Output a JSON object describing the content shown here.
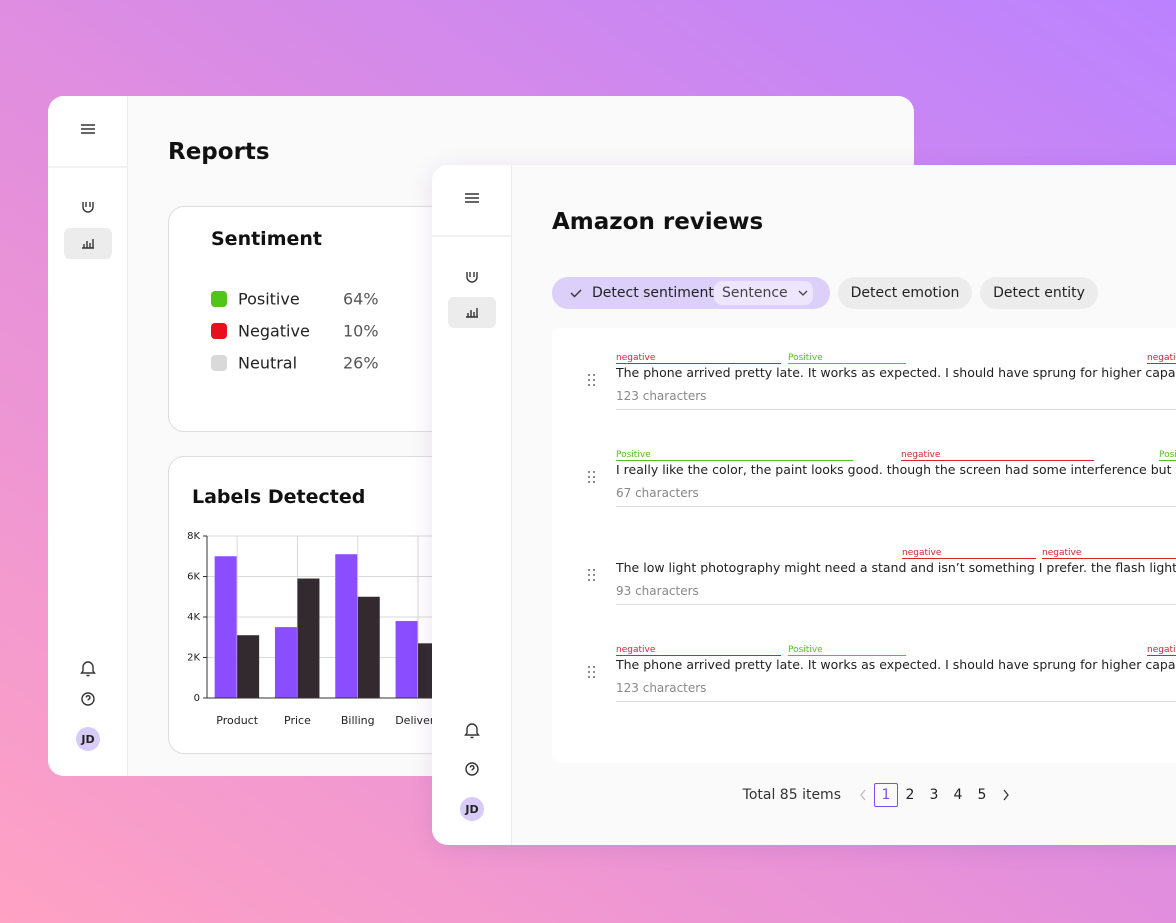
{
  "reports_window": {
    "title": "Reports",
    "avatar": "JD"
  },
  "chart_data": [
    {
      "type": "pie",
      "title": "Sentiment",
      "categories": [
        "Positive",
        "Negative",
        "Neutral"
      ],
      "values": [
        64,
        10,
        26
      ],
      "value_labels": [
        "64%",
        "10%",
        "26%"
      ],
      "colors": [
        "#52c41a",
        "#e8101a",
        "#d9d9d9"
      ],
      "donut": true
    },
    {
      "type": "bar",
      "title": "Labels Detected",
      "categories": [
        "Product",
        "Price",
        "Billing",
        "Delivery"
      ],
      "series": [
        {
          "color": "#8a4dff",
          "values": [
            7000,
            3500,
            7100,
            3800
          ]
        },
        {
          "color": "#322a2f",
          "values": [
            3100,
            5900,
            5000,
            2700
          ]
        }
      ],
      "ylim": [
        0,
        8000
      ],
      "yticks": [
        0,
        {
          "value": 2000,
          "label": "2K"
        },
        {
          "value": 4000,
          "label": "4K"
        },
        {
          "value": 6000,
          "label": "6K"
        },
        {
          "value": 8000,
          "label": "8K"
        }
      ],
      "grid": true
    }
  ],
  "reviews_window": {
    "title": "Amazon reviews",
    "avatar": "JD",
    "toolbar": {
      "detect_sentiment": "Detect sentiment",
      "granularity": "Sentence",
      "detect_emotion": "Detect emotion",
      "detect_entity": "Detect entity"
    },
    "reviews": [
      {
        "text": "The phone arrived pretty late. It works as expected. I should have sprung for higher capacity. I think",
        "characters": "123 characters",
        "tags": [
          {
            "label": "negative",
            "color": "#d9232e"
          },
          {
            "label": "Positive",
            "color": "#52c41a"
          },
          {
            "label": "negative",
            "color": "#d9232e"
          }
        ]
      },
      {
        "text": "I really like the color, the paint looks good. though the screen had some interference but overall the",
        "characters": "67 characters",
        "tags": [
          {
            "label": "Positive",
            "color": "#52c41a"
          },
          {
            "label": "negative",
            "color": "#d9232e"
          },
          {
            "label": "Positive",
            "color": "#52c41a"
          }
        ]
      },
      {
        "text": "The low light photography might need a stand and isn’t something I prefer. the flash light is the worst",
        "characters": "93 characters",
        "tags": [
          {
            "label": "negative",
            "color": "#d9232e"
          },
          {
            "label": "negative",
            "color": "#d9232e"
          }
        ]
      },
      {
        "text": "The phone arrived pretty late. It works as expected. I should have sprung for higher capacity. I think",
        "characters": "123 characters",
        "tags": [
          {
            "label": "negative",
            "color": "#d9232e"
          },
          {
            "label": "Positive",
            "color": "#52c41a"
          },
          {
            "label": "negative",
            "color": "#d9232e"
          }
        ]
      }
    ],
    "pagination": {
      "total": "Total 85 items",
      "pages": [
        1,
        2,
        3,
        4,
        5
      ]
    }
  }
}
